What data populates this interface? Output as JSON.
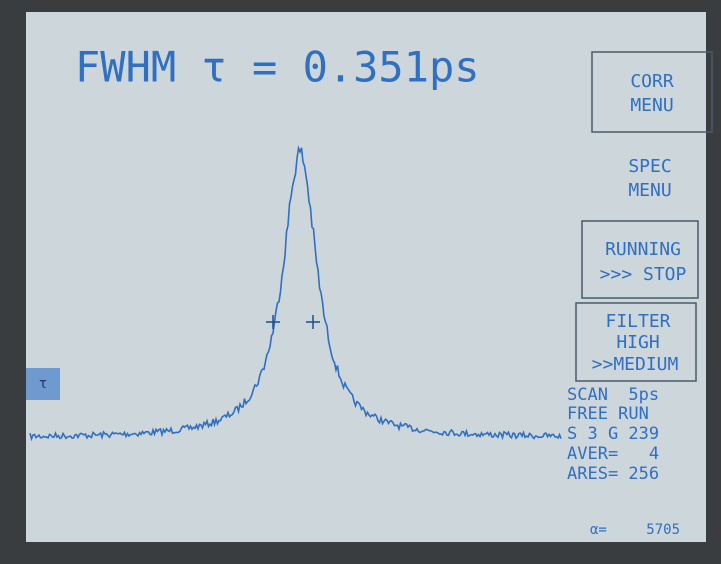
{
  "header": {
    "title": "FWHM τ = 0.351ps"
  },
  "menus": [
    {
      "lines": [
        "CORR",
        "MENU"
      ]
    },
    {
      "lines": [
        "SPEC",
        "MENU"
      ]
    },
    {
      "lines": [
        "RUNNING",
        ">>> STOP"
      ]
    },
    {
      "lines": [
        "FILTER",
        "HIGH",
        ">>MEDIUM"
      ]
    }
  ],
  "status": [
    "SCAN  5ps",
    "FREE RUN",
    "S 3 G 239",
    "AVER=   4",
    "ARES= 256"
  ],
  "marker": "τ",
  "counter": {
    "label": "α=",
    "value": "5705"
  }
}
